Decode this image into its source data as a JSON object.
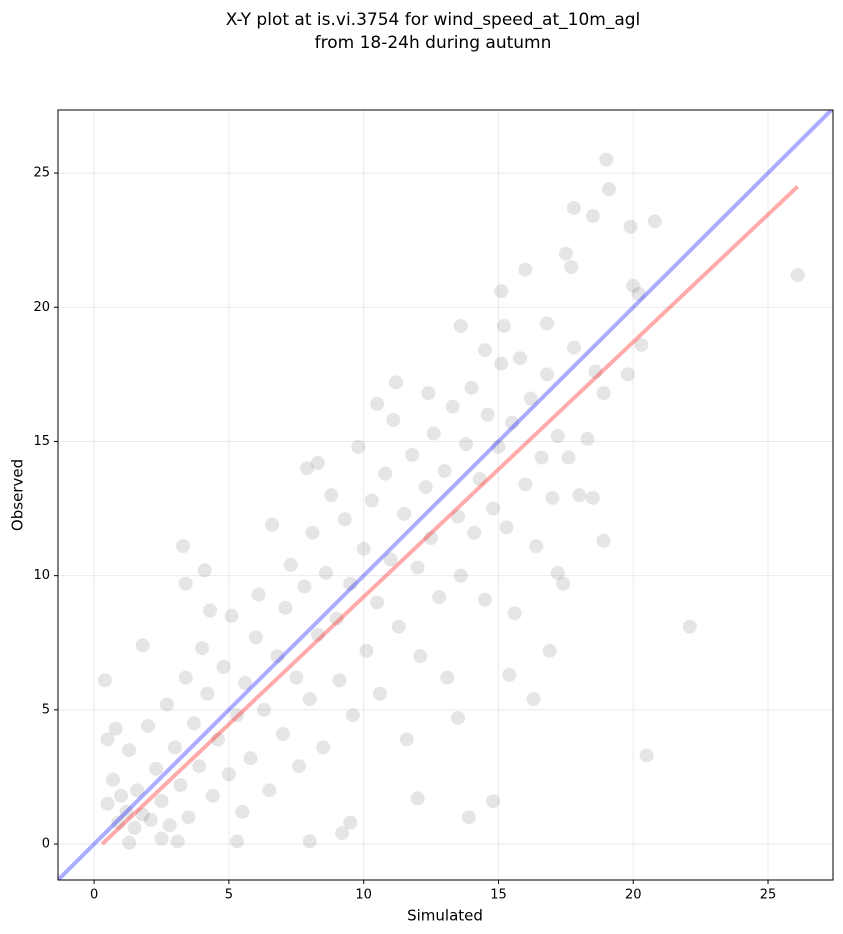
{
  "chart_data": {
    "type": "scatter",
    "title": [
      "X-Y plot at is.vi.3754 for wind_speed_at_10m_agl",
      "from 18-24h during autumn"
    ],
    "xlabel": "Simulated",
    "ylabel": "Observed",
    "xlim": [
      -1.34,
      27.41
    ],
    "ylim": [
      -1.34,
      27.35
    ],
    "xticks": [
      0,
      5,
      10,
      15,
      20,
      25
    ],
    "yticks": [
      0,
      5,
      10,
      15,
      20,
      25
    ],
    "grid": true,
    "color": "#000000",
    "x": [
      0.4,
      3.3,
      22.1,
      20.5,
      26.1,
      19.0,
      19.1,
      20.8,
      19.9,
      17.8,
      18.5,
      15.1,
      16.0,
      17.5,
      17.7,
      20.0,
      20.3,
      20.2,
      18.9,
      19.8,
      18.9,
      17.2,
      16.9,
      16.3,
      15.4,
      14.8,
      13.9,
      13.5,
      12.0,
      9.5,
      9.2,
      8.0,
      5.3,
      3.1,
      1.3,
      2.5,
      4.1,
      3.4,
      4.3,
      1.8,
      0.8,
      0.5,
      8.3,
      7.9,
      10.5,
      11.2,
      12.4,
      13.6,
      14.5,
      15.2,
      16.8,
      0.5,
      0.7,
      0.9,
      1.0,
      1.2,
      1.3,
      1.5,
      1.6,
      1.8,
      2.0,
      2.1,
      2.3,
      2.5,
      2.7,
      2.8,
      3.0,
      3.2,
      3.4,
      3.5,
      3.7,
      3.9,
      4.0,
      4.2,
      4.4,
      4.6,
      4.8,
      5.0,
      5.1,
      5.3,
      5.5,
      5.6,
      5.8,
      6.0,
      6.1,
      6.3,
      6.5,
      6.6,
      6.8,
      7.0,
      7.1,
      7.3,
      7.5,
      7.6,
      7.8,
      8.0,
      8.1,
      8.3,
      8.5,
      8.6,
      8.8,
      9.0,
      9.1,
      9.3,
      9.5,
      9.6,
      9.8,
      10.0,
      10.1,
      10.3,
      10.5,
      10.6,
      10.8,
      11.0,
      11.1,
      11.3,
      11.5,
      11.6,
      11.8,
      12.0,
      12.1,
      12.3,
      12.5,
      12.6,
      12.8,
      13.0,
      13.1,
      13.3,
      13.5,
      13.6,
      13.8,
      14.0,
      14.1,
      14.3,
      14.5,
      14.6,
      14.8,
      15.0,
      15.1,
      15.3,
      15.5,
      15.6,
      15.8,
      16.0,
      16.2,
      16.4,
      16.6,
      16.8,
      17.0,
      17.2,
      17.4,
      17.6,
      17.8,
      18.0,
      18.3,
      18.5,
      18.6
    ],
    "y": [
      6.1,
      11.1,
      8.1,
      3.3,
      21.2,
      25.5,
      24.4,
      23.2,
      23.0,
      23.7,
      23.4,
      20.6,
      21.4,
      22.0,
      21.5,
      20.8,
      18.6,
      20.5,
      16.8,
      17.5,
      11.3,
      10.1,
      7.2,
      5.4,
      6.3,
      1.6,
      1.0,
      4.7,
      1.7,
      0.8,
      0.4,
      0.1,
      0.1,
      0.1,
      0.05,
      0.2,
      10.2,
      9.7,
      8.7,
      7.4,
      4.3,
      3.9,
      14.2,
      14.0,
      16.4,
      17.2,
      16.8,
      19.3,
      18.4,
      19.3,
      19.4,
      1.5,
      2.4,
      0.8,
      1.8,
      1.2,
      3.5,
      0.6,
      2.0,
      1.1,
      4.4,
      0.9,
      2.8,
      1.6,
      5.2,
      0.7,
      3.6,
      2.2,
      6.2,
      1.0,
      4.5,
      2.9,
      7.3,
      5.6,
      1.8,
      3.9,
      6.6,
      2.6,
      8.5,
      4.8,
      1.2,
      6.0,
      3.2,
      7.7,
      9.3,
      5.0,
      2.0,
      11.9,
      7.0,
      4.1,
      8.8,
      10.4,
      6.2,
      2.9,
      9.6,
      5.4,
      11.6,
      7.8,
      3.6,
      10.1,
      13.0,
      8.4,
      6.1,
      12.1,
      9.7,
      4.8,
      14.8,
      11.0,
      7.2,
      12.8,
      9.0,
      5.6,
      13.8,
      10.6,
      15.8,
      8.1,
      12.3,
      3.9,
      14.5,
      10.3,
      7.0,
      13.3,
      11.4,
      15.3,
      9.2,
      13.9,
      6.2,
      16.3,
      12.2,
      10.0,
      14.9,
      17.0,
      11.6,
      13.6,
      9.1,
      16.0,
      12.5,
      14.8,
      17.9,
      11.8,
      15.7,
      8.6,
      18.1,
      13.4,
      16.6,
      11.1,
      14.4,
      17.5,
      12.9,
      15.2,
      9.7,
      14.4,
      18.5,
      13.0,
      15.1,
      12.9,
      17.6
    ],
    "lines": [
      {
        "color": "#0000ff",
        "x": [
          -1.34,
          27.41
        ],
        "y": [
          -1.34,
          27.41
        ]
      },
      {
        "color": "#ff0000",
        "x": [
          0.3,
          26.1
        ],
        "y": [
          0.0,
          24.5
        ]
      }
    ]
  }
}
